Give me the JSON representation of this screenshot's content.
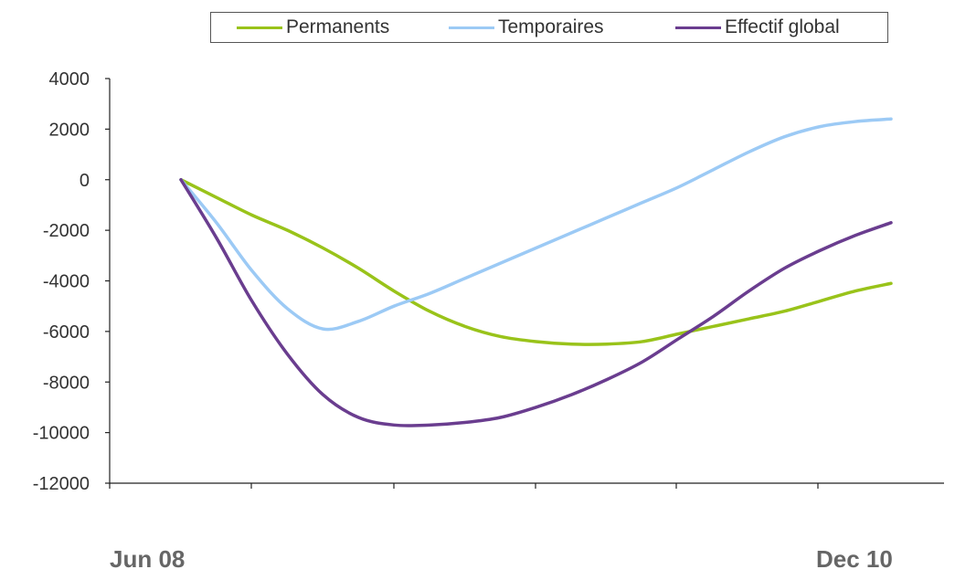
{
  "chart_data": {
    "type": "line",
    "x_start_label": "Jun 08",
    "x_end_label": "Dec 10",
    "ylim": [
      -12000,
      4000
    ],
    "yticks": [
      "4000",
      "2000",
      "0",
      "-2000",
      "-4000",
      "-6000",
      "-8000",
      "-10000",
      "-12000"
    ],
    "grid": false,
    "legend_position": "top",
    "series": [
      {
        "name": "Permanents",
        "color": "#99c31a",
        "values": [
          0,
          -700,
          -1400,
          -2000,
          -2700,
          -3500,
          -4400,
          -5200,
          -5800,
          -6200,
          -6400,
          -6500,
          -6500,
          -6400,
          -6100,
          -5800,
          -5500,
          -5200,
          -4800,
          -4400,
          -4100
        ]
      },
      {
        "name": "Temporaires",
        "color": "#9ccaf5",
        "values": [
          0,
          -1700,
          -3600,
          -5100,
          -5900,
          -5600,
          -5000,
          -4500,
          -3900,
          -3300,
          -2700,
          -2100,
          -1500,
          -900,
          -300,
          400,
          1100,
          1700,
          2100,
          2300,
          2400
        ]
      },
      {
        "name": "Effectif global",
        "color": "#6a3d8f",
        "values": [
          0,
          -2300,
          -4800,
          -6900,
          -8500,
          -9400,
          -9700,
          -9700,
          -9600,
          -9400,
          -9000,
          -8500,
          -7900,
          -7200,
          -6300,
          -5400,
          -4400,
          -3500,
          -2800,
          -2200,
          -1700
        ]
      }
    ]
  }
}
